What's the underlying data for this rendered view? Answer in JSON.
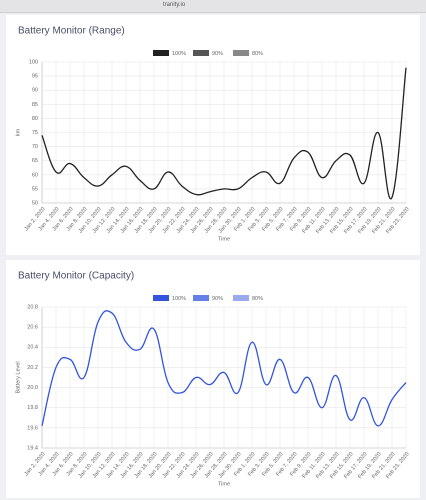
{
  "browser": {
    "url": "tranity.io"
  },
  "chart_data": [
    {
      "type": "line",
      "title": "Battery Monitor (Range)",
      "x_label": "Time",
      "y_label": "km",
      "categories": [
        "Jan 2, 2020",
        "Jan 4, 2020",
        "Jan 6, 2020",
        "Jan 8, 2020",
        "Jan 10, 2020",
        "Jan 12, 2020",
        "Jan 14, 2020",
        "Jan 16, 2020",
        "Jan 18, 2020",
        "Jan 20, 2020",
        "Jan 22, 2020",
        "Jan 24, 2020",
        "Jan 26, 2020",
        "Jan 28, 2020",
        "Jan 30, 2020",
        "Feb 1, 2020",
        "Feb 3, 2020",
        "Feb 5, 2020",
        "Feb 7, 2020",
        "Feb 9, 2020",
        "Feb 11, 2020",
        "Feb 13, 2020",
        "Feb 15, 2020",
        "Feb 17, 2020",
        "Feb 19, 2020",
        "Feb 21, 2020",
        "Feb 23, 2020"
      ],
      "series": [
        {
          "name": "100%",
          "color": "#222222",
          "values": [
            74,
            61,
            64,
            59,
            56,
            60,
            63,
            58,
            55,
            61,
            56,
            53,
            54,
            55,
            55,
            59,
            61,
            57,
            66,
            68,
            59,
            65,
            67,
            57,
            75,
            52,
            98
          ]
        },
        {
          "name": "90%",
          "color": "#555555"
        },
        {
          "name": "80%",
          "color": "#888888"
        }
      ],
      "ylim": [
        50,
        100
      ],
      "yticks": [
        50,
        55,
        60,
        65,
        70,
        75,
        80,
        85,
        90,
        95,
        100
      ],
      "grid": true
    },
    {
      "type": "line",
      "title": "Battery Monitor (Capacity)",
      "x_label": "Time",
      "y_label": "Battery Level",
      "categories": [
        "Jan 2, 2020",
        "Jan 4, 2020",
        "Jan 6, 2020",
        "Jan 8, 2020",
        "Jan 10, 2020",
        "Jan 12, 2020",
        "Jan 14, 2020",
        "Jan 16, 2020",
        "Jan 18, 2020",
        "Jan 20, 2020",
        "Jan 22, 2020",
        "Jan 24, 2020",
        "Jan 26, 2020",
        "Jan 28, 2020",
        "Jan 30, 2020",
        "Feb 1, 2020",
        "Feb 3, 2020",
        "Feb 5, 2020",
        "Feb 7, 2020",
        "Feb 9, 2020",
        "Feb 11, 2020",
        "Feb 13, 2020",
        "Feb 15, 2020",
        "Feb 17, 2020",
        "Feb 19, 2020",
        "Feb 21, 2020",
        "Feb 23, 2020"
      ],
      "series": [
        {
          "name": "100%",
          "color": "#3355dd",
          "values": [
            19.62,
            20.2,
            20.28,
            20.1,
            20.65,
            20.74,
            20.45,
            20.38,
            20.58,
            20.05,
            19.95,
            20.1,
            20.03,
            20.15,
            19.95,
            20.45,
            20.03,
            20.28,
            19.95,
            20.1,
            19.8,
            20.12,
            19.68,
            19.9,
            19.62,
            19.88,
            20.05
          ]
        },
        {
          "name": "90%",
          "color": "#6680e8"
        },
        {
          "name": "80%",
          "color": "#99aaf0"
        }
      ],
      "ylim": [
        19.4,
        20.8
      ],
      "yticks": [
        19.4,
        19.6,
        19.8,
        {
          "value": 20,
          "label": "20.0"
        },
        20.2,
        20.4,
        20.6,
        20.8
      ],
      "grid": true
    }
  ]
}
